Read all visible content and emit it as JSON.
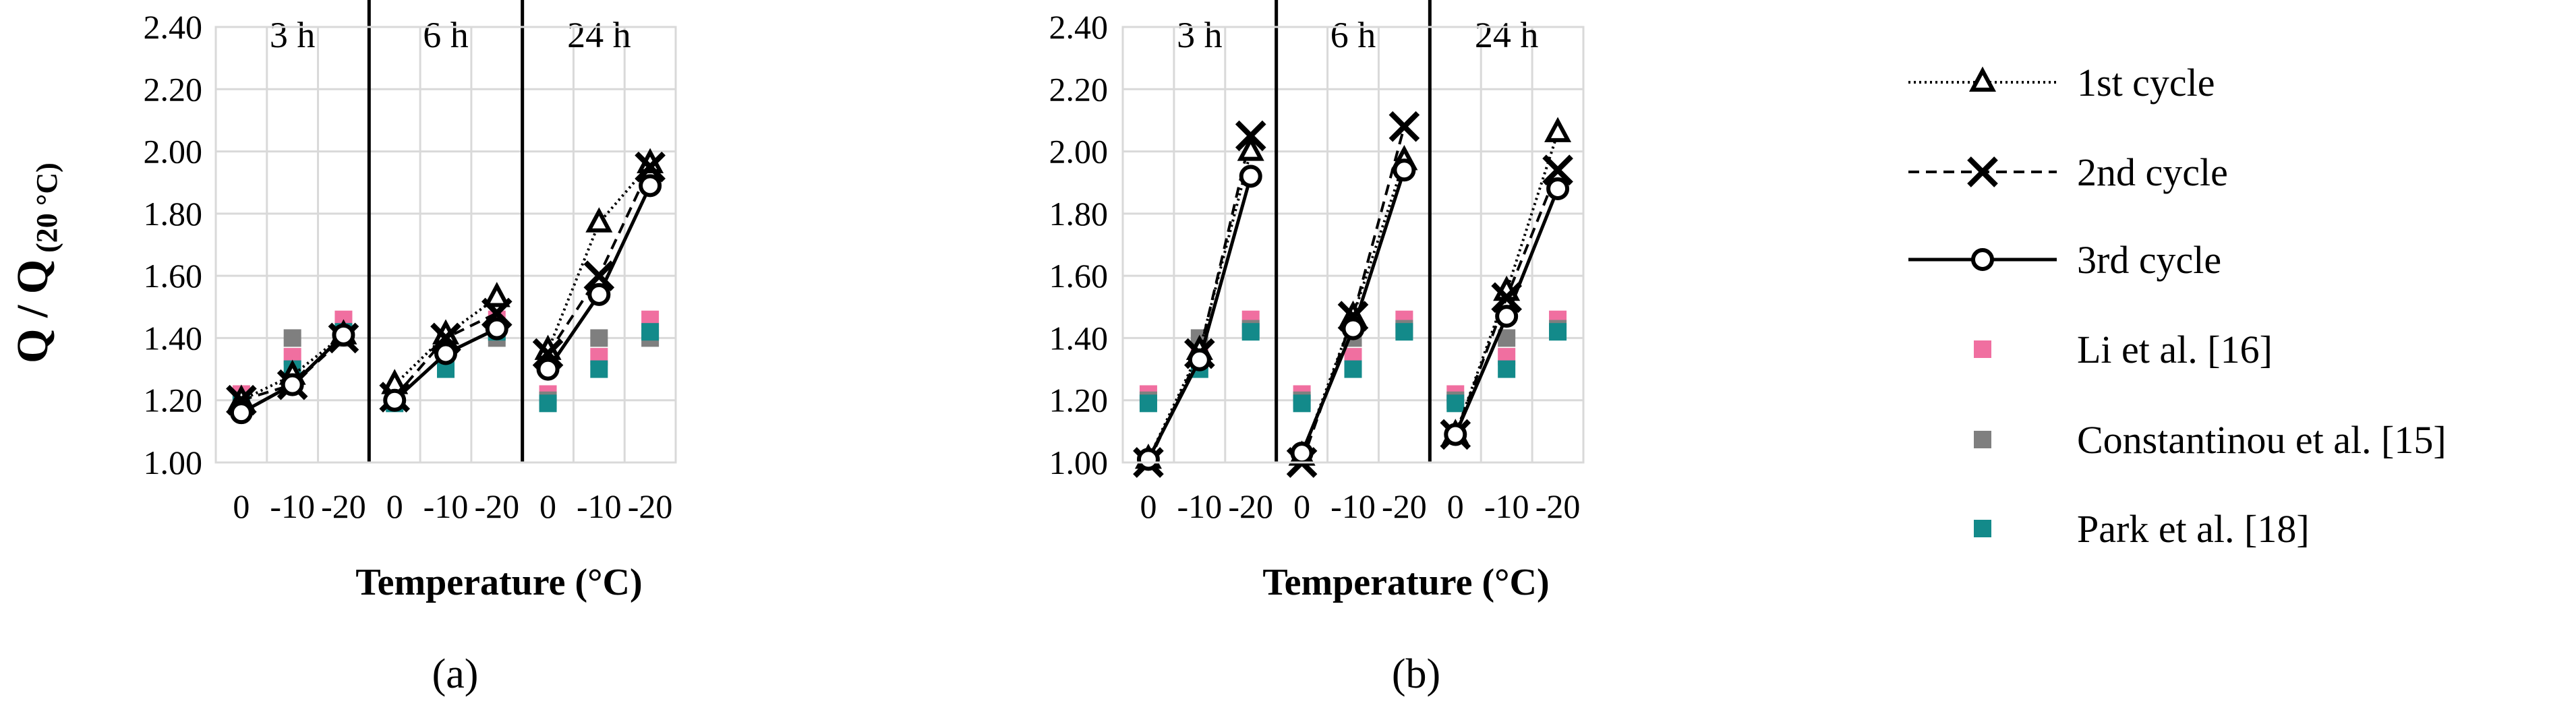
{
  "figure": {
    "y_label": "Q / Q",
    "y_label_sub": "(20 °C)",
    "x_label": "Temperature (°C)",
    "captions": [
      "(a)",
      "(b)"
    ]
  },
  "legend": [
    {
      "label": "1st cycle",
      "style": "dotted",
      "marker": "triangle"
    },
    {
      "label": "2nd cycle",
      "style": "dashed",
      "marker": "cross"
    },
    {
      "label": "3rd cycle",
      "style": "solid",
      "marker": "circle"
    },
    {
      "label": "Li et al. [16]",
      "marker": "square",
      "color": "#f06fa0"
    },
    {
      "label": "Constantinou et al. [15]",
      "marker": "square",
      "color": "#7f7f7f"
    },
    {
      "label": "Park et al. [18]",
      "marker": "square",
      "color": "#138a8a"
    }
  ],
  "chart_data": [
    {
      "type": "line",
      "panel": "a",
      "ylabel": "Q / Q (20 °C)",
      "xlabel": "Temperature (°C)",
      "ylim": [
        1.0,
        2.4
      ],
      "yticks": [
        "1.00",
        "1.20",
        "1.40",
        "1.60",
        "1.80",
        "2.00",
        "2.20",
        "2.40"
      ],
      "categories": [
        "0",
        "-10",
        "-20"
      ],
      "groups": [
        {
          "title": "3 h",
          "series": [
            {
              "name": "1st cycle",
              "values": [
                1.2,
                1.28,
                1.41
              ]
            },
            {
              "name": "2nd cycle",
              "values": [
                1.2,
                1.25,
                1.4
              ]
            },
            {
              "name": "3rd cycle",
              "values": [
                1.16,
                1.25,
                1.41
              ]
            },
            {
              "name": "Li et al. [16]",
              "values": [
                1.22,
                1.34,
                1.46
              ]
            },
            {
              "name": "Constantinou et al. [15]",
              "values": [
                1.2,
                1.4,
                1.4
              ]
            },
            {
              "name": "Park et al. [18]",
              "values": [
                1.19,
                1.3,
                1.42
              ]
            }
          ]
        },
        {
          "title": "6 h",
          "series": [
            {
              "name": "1st cycle",
              "values": [
                1.25,
                1.41,
                1.53
              ]
            },
            {
              "name": "2nd cycle",
              "values": [
                1.21,
                1.4,
                1.48
              ]
            },
            {
              "name": "3rd cycle",
              "values": [
                1.2,
                1.35,
                1.43
              ]
            },
            {
              "name": "Li et al. [16]",
              "values": [
                1.22,
                1.34,
                1.46
              ]
            },
            {
              "name": "Constantinou et al. [15]",
              "values": [
                1.2,
                1.4,
                1.4
              ]
            },
            {
              "name": "Park et al. [18]",
              "values": [
                1.19,
                1.3,
                1.42
              ]
            }
          ]
        },
        {
          "title": "24 h",
          "series": [
            {
              "name": "1st cycle",
              "values": [
                1.36,
                1.77,
                1.96
              ]
            },
            {
              "name": "2nd cycle",
              "values": [
                1.35,
                1.6,
                1.95
              ]
            },
            {
              "name": "3rd cycle",
              "values": [
                1.3,
                1.54,
                1.89
              ]
            },
            {
              "name": "Li et al. [16]",
              "values": [
                1.22,
                1.34,
                1.46
              ]
            },
            {
              "name": "Constantinou et al. [15]",
              "values": [
                1.2,
                1.4,
                1.4
              ]
            },
            {
              "name": "Park et al. [18]",
              "values": [
                1.19,
                1.3,
                1.42
              ]
            }
          ]
        }
      ]
    },
    {
      "type": "line",
      "panel": "b",
      "ylabel": "Q / Q (20 °C)",
      "xlabel": "Temperature (°C)",
      "ylim": [
        1.0,
        2.4
      ],
      "yticks": [
        "1.00",
        "1.20",
        "1.40",
        "1.60",
        "1.80",
        "2.00",
        "2.20",
        "2.40"
      ],
      "categories": [
        "0",
        "-10",
        "-20"
      ],
      "groups": [
        {
          "title": "3 h",
          "series": [
            {
              "name": "1st cycle",
              "values": [
                1.01,
                1.36,
                2.0
              ]
            },
            {
              "name": "2nd cycle",
              "values": [
                1.0,
                1.35,
                2.05
              ]
            },
            {
              "name": "3rd cycle",
              "values": [
                1.01,
                1.33,
                1.92
              ]
            },
            {
              "name": "Li et al. [16]",
              "values": [
                1.22,
                1.34,
                1.46
              ]
            },
            {
              "name": "Constantinou et al. [15]",
              "values": [
                1.2,
                1.4,
                1.43
              ]
            },
            {
              "name": "Park et al. [18]",
              "values": [
                1.19,
                1.3,
                1.42
              ]
            }
          ]
        },
        {
          "title": "6 h",
          "series": [
            {
              "name": "1st cycle",
              "values": [
                1.02,
                1.47,
                1.97
              ]
            },
            {
              "name": "2nd cycle",
              "values": [
                1.0,
                1.47,
                2.08
              ]
            },
            {
              "name": "3rd cycle",
              "values": [
                1.03,
                1.43,
                1.94
              ]
            },
            {
              "name": "Li et al. [16]",
              "values": [
                1.22,
                1.34,
                1.46
              ]
            },
            {
              "name": "Constantinou et al. [15]",
              "values": [
                1.2,
                1.4,
                1.43
              ]
            },
            {
              "name": "Park et al. [18]",
              "values": [
                1.19,
                1.3,
                1.42
              ]
            }
          ]
        },
        {
          "title": "24 h",
          "series": [
            {
              "name": "1st cycle",
              "values": [
                1.09,
                1.55,
                2.06
              ]
            },
            {
              "name": "2nd cycle",
              "values": [
                1.09,
                1.53,
                1.94
              ]
            },
            {
              "name": "3rd cycle",
              "values": [
                1.09,
                1.47,
                1.88
              ]
            },
            {
              "name": "Li et al. [16]",
              "values": [
                1.22,
                1.34,
                1.46
              ]
            },
            {
              "name": "Constantinou et al. [15]",
              "values": [
                1.2,
                1.4,
                1.43
              ]
            },
            {
              "name": "Park et al. [18]",
              "values": [
                1.19,
                1.3,
                1.42
              ]
            }
          ]
        }
      ]
    }
  ]
}
